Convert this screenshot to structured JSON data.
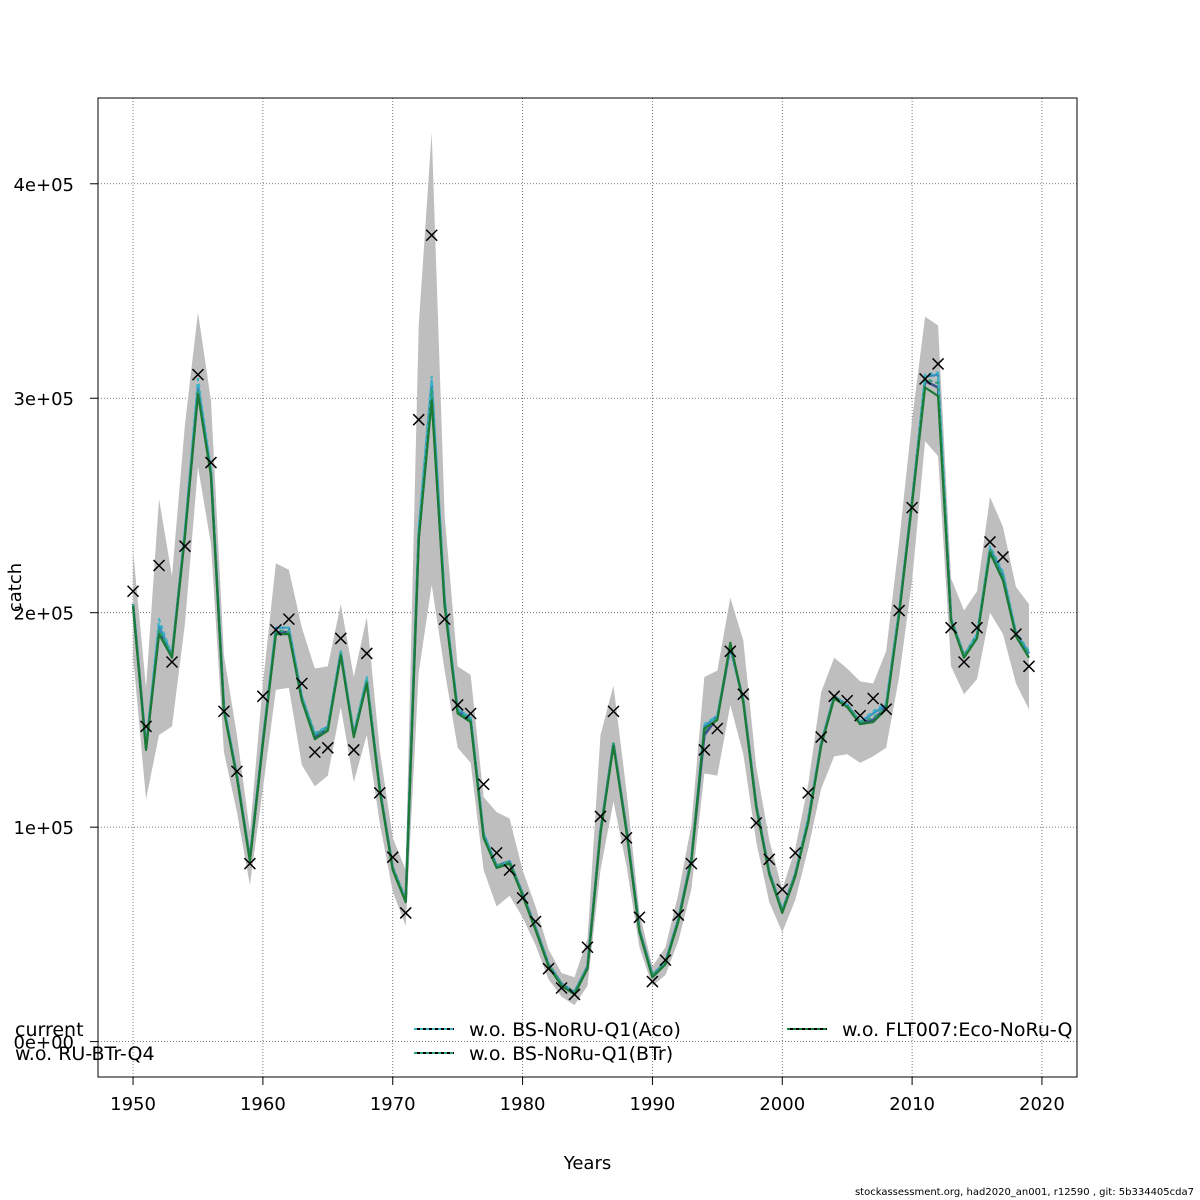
{
  "chart_data": {
    "type": "line",
    "title": "",
    "xlabel": "Years",
    "ylabel": "catch",
    "xlim": [
      1947.3,
      2022.7
    ],
    "ylim": [
      -16500,
      440000
    ],
    "x_ticks": [
      1950,
      1960,
      1970,
      1980,
      1990,
      2000,
      2010,
      2020
    ],
    "x_tick_labels": [
      "1950",
      "1960",
      "1970",
      "1980",
      "1990",
      "2000",
      "2010",
      "2020"
    ],
    "y_ticks": [
      0,
      100000,
      200000,
      300000,
      400000
    ],
    "y_tick_labels": [
      "0e+00",
      "1e+05",
      "2e+05",
      "3e+05",
      "4e+05"
    ],
    "grid": true,
    "legend_position": "bottom",
    "years": [
      1950,
      1951,
      1952,
      1953,
      1954,
      1955,
      1956,
      1957,
      1958,
      1959,
      1960,
      1961,
      1962,
      1963,
      1964,
      1965,
      1966,
      1967,
      1968,
      1969,
      1970,
      1971,
      1972,
      1973,
      1974,
      1975,
      1976,
      1977,
      1978,
      1979,
      1980,
      1981,
      1982,
      1983,
      1984,
      1985,
      1986,
      1987,
      1988,
      1989,
      1990,
      1991,
      1992,
      1993,
      1994,
      1995,
      1996,
      1997,
      1998,
      1999,
      2000,
      2001,
      2002,
      2003,
      2004,
      2005,
      2006,
      2007,
      2008,
      2009,
      2010,
      2011,
      2012,
      2013,
      2014,
      2015,
      2016,
      2017,
      2018,
      2019
    ],
    "series": [
      {
        "name": "current",
        "color": "#3b528b",
        "dash": "",
        "values": [
          204000,
          137000,
          191000,
          180000,
          237000,
          303000,
          265000,
          155000,
          124000,
          85000,
          140000,
          191000,
          191000,
          160000,
          142000,
          146000,
          181000,
          143000,
          168000,
          118000,
          81000,
          66000,
          235000,
          302000,
          204000,
          154000,
          150000,
          96000,
          82000,
          84000,
          69000,
          53000,
          36000,
          27000,
          23000,
          35000,
          98000,
          139000,
          99000,
          52000,
          31000,
          37000,
          57000,
          85000,
          143000,
          151000,
          184000,
          159000,
          110000,
          79000,
          61000,
          78000,
          103000,
          139000,
          161000,
          157000,
          149000,
          150000,
          156000,
          200000,
          252000,
          308000,
          305000,
          197000,
          180000,
          189000,
          229000,
          216000,
          190000,
          181000
        ]
      },
      {
        "name": "w.o. RU-BTr-Q4",
        "color": "#2e8fc2",
        "dash": "",
        "values": [
          204000,
          137000,
          194000,
          180000,
          238000,
          306000,
          266000,
          156000,
          124000,
          85000,
          140000,
          193000,
          193000,
          161000,
          143000,
          147000,
          182000,
          143000,
          169000,
          118000,
          81000,
          66000,
          238000,
          308000,
          206000,
          155000,
          151000,
          97000,
          82000,
          84000,
          69000,
          53000,
          36000,
          27000,
          23000,
          35000,
          98000,
          139000,
          99000,
          52000,
          31000,
          37000,
          57000,
          85000,
          147000,
          152000,
          184000,
          159000,
          110000,
          79000,
          61000,
          78000,
          104000,
          139000,
          161000,
          157000,
          149000,
          153000,
          157000,
          201000,
          252000,
          310000,
          311000,
          197000,
          180000,
          190000,
          230000,
          218000,
          190000,
          181000
        ]
      },
      {
        "name": "w.o. BS-NoRU-Q1(Aco)",
        "color": "#3fb4c6",
        "dash": "4,3",
        "values": [
          204000,
          137000,
          197000,
          180000,
          239000,
          309000,
          267000,
          156000,
          124000,
          85000,
          141000,
          193000,
          193000,
          161000,
          144000,
          147000,
          182000,
          144000,
          170000,
          118000,
          81000,
          66000,
          240000,
          310000,
          207000,
          155000,
          151000,
          97000,
          82000,
          84000,
          69000,
          53000,
          36000,
          27000,
          23000,
          35000,
          98000,
          139000,
          99000,
          52000,
          31000,
          37000,
          57000,
          85000,
          148000,
          152000,
          184000,
          159000,
          110000,
          79000,
          61000,
          78000,
          104000,
          139000,
          161000,
          157000,
          149000,
          154000,
          158000,
          201000,
          252000,
          311000,
          312000,
          197000,
          180000,
          190000,
          231000,
          219000,
          191000,
          182000
        ]
      },
      {
        "name": "w.o. BS-NoRu-Q1(BTr)",
        "color": "#2fa077",
        "dash": "4,3",
        "values": [
          204000,
          137000,
          192000,
          180000,
          237000,
          304000,
          265000,
          155000,
          124000,
          85000,
          140000,
          192000,
          191000,
          160000,
          143000,
          146000,
          181000,
          143000,
          168000,
          118000,
          81000,
          66000,
          236000,
          304000,
          205000,
          154000,
          150000,
          96000,
          82000,
          84000,
          69000,
          53000,
          36000,
          27000,
          23000,
          35000,
          98000,
          139000,
          99000,
          52000,
          31000,
          37000,
          57000,
          85000,
          145000,
          151000,
          185000,
          159000,
          110000,
          79000,
          61000,
          78000,
          103000,
          139000,
          161000,
          157000,
          149000,
          151000,
          156000,
          200000,
          252000,
          309000,
          307000,
          197000,
          180000,
          189000,
          230000,
          217000,
          190000,
          181000
        ]
      },
      {
        "name": "w.o. FLT007:Eco-NoRu-Q",
        "color": "#1a7a36",
        "dash": "",
        "values": [
          203000,
          136000,
          190000,
          179000,
          236000,
          302000,
          264000,
          154000,
          123000,
          84000,
          139000,
          190000,
          190000,
          159000,
          141000,
          145000,
          180000,
          142000,
          167000,
          117000,
          80000,
          65000,
          234000,
          299000,
          203000,
          153000,
          149000,
          95000,
          81000,
          83000,
          68000,
          52000,
          35000,
          26000,
          22000,
          34000,
          97000,
          138000,
          98000,
          51000,
          30000,
          36000,
          56000,
          84000,
          146000,
          150000,
          186000,
          158000,
          109000,
          78000,
          60000,
          77000,
          102000,
          138000,
          160000,
          156000,
          148000,
          149000,
          155000,
          199000,
          251000,
          305000,
          301000,
          196000,
          179000,
          188000,
          228000,
          215000,
          189000,
          179000
        ]
      }
    ],
    "confidence_band": {
      "color": "#bebebe",
      "lower": [
        180000,
        113000,
        143000,
        147000,
        195000,
        268000,
        232000,
        135000,
        107000,
        73000,
        118000,
        164000,
        165000,
        129000,
        119000,
        124000,
        156000,
        121000,
        143000,
        102000,
        70000,
        54000,
        172000,
        213000,
        173000,
        137000,
        130000,
        80000,
        63000,
        68000,
        58000,
        45000,
        29000,
        21000,
        17000,
        26000,
        80000,
        112000,
        82000,
        44000,
        26000,
        31000,
        47000,
        71000,
        125000,
        124000,
        157000,
        134000,
        93000,
        65000,
        51000,
        66000,
        90000,
        118000,
        133000,
        134000,
        130000,
        133000,
        137000,
        170000,
        215000,
        280000,
        273000,
        175000,
        162000,
        169000,
        200000,
        190000,
        167000,
        155000
      ],
      "upper": [
        229000,
        165000,
        253000,
        217000,
        288000,
        340000,
        299000,
        180000,
        143000,
        98000,
        167000,
        223000,
        220000,
        193000,
        174000,
        175000,
        204000,
        170000,
        198000,
        136000,
        95000,
        80000,
        334000,
        424000,
        245000,
        175000,
        171000,
        114000,
        107000,
        104000,
        80000,
        63000,
        43000,
        32000,
        30000,
        48000,
        143000,
        166000,
        117000,
        60000,
        35000,
        44000,
        69000,
        101000,
        170000,
        173000,
        207000,
        187000,
        128000,
        94000,
        71000,
        90000,
        120000,
        163000,
        179000,
        174000,
        168000,
        167000,
        182000,
        233000,
        290000,
        338000,
        334000,
        216000,
        201000,
        210000,
        254000,
        240000,
        212000,
        204000
      ]
    },
    "observations": {
      "marker": "x",
      "x": [
        1950,
        1951,
        1952,
        1953,
        1954,
        1955,
        1956,
        1957,
        1958,
        1959,
        1960,
        1961,
        1962,
        1963,
        1964,
        1965,
        1966,
        1967,
        1968,
        1969,
        1970,
        1971,
        1972,
        1973,
        1974,
        1975,
        1976,
        1977,
        1978,
        1979,
        1980,
        1981,
        1982,
        1983,
        1984,
        1985,
        1986,
        1987,
        1988,
        1989,
        1990,
        1991,
        1992,
        1993,
        1994,
        1995,
        1996,
        1997,
        1998,
        1999,
        2000,
        2001,
        2002,
        2003,
        2004,
        2005,
        2006,
        2007,
        2008,
        2009,
        2010,
        2011,
        2012,
        2013,
        2014,
        2015,
        2016,
        2017,
        2018,
        2019
      ],
      "y": [
        210000,
        147000,
        222000,
        177000,
        231000,
        311000,
        270000,
        154000,
        126000,
        83000,
        161000,
        192000,
        197000,
        167000,
        135000,
        137000,
        188000,
        136000,
        181000,
        116000,
        86000,
        60000,
        290000,
        376000,
        197000,
        157000,
        153000,
        120000,
        88000,
        80000,
        67000,
        56000,
        34000,
        25000,
        22000,
        44000,
        105000,
        154000,
        95000,
        58000,
        28000,
        38000,
        59000,
        83000,
        136000,
        146000,
        182000,
        162000,
        102000,
        85000,
        71000,
        88000,
        116000,
        142000,
        161000,
        159000,
        152000,
        160000,
        155000,
        201000,
        249000,
        309000,
        316000,
        193000,
        177000,
        193000,
        233000,
        226000,
        190000,
        175000
      ]
    }
  },
  "legend": {
    "items": [
      {
        "label": "current",
        "color": "#3b528b",
        "dash": ""
      },
      {
        "label": "w.o. RU-BTr-Q4",
        "color": "#2e8fc2",
        "dash": ""
      },
      {
        "label": "w.o. BS-NoRU-Q1(Aco)",
        "color": "#3fb4c6",
        "dash": "3,3"
      },
      {
        "label": "w.o. BS-NoRu-Q1(BTr)",
        "color": "#2fa077",
        "dash": "3,3"
      },
      {
        "label": "w.o. FLT007:Eco-NoRu-Q",
        "color": "#1a7a36",
        "dash": "3,3"
      }
    ]
  },
  "footer": "stockassessment.org, had2020_an001, r12590 , git: 5b334405cda7"
}
